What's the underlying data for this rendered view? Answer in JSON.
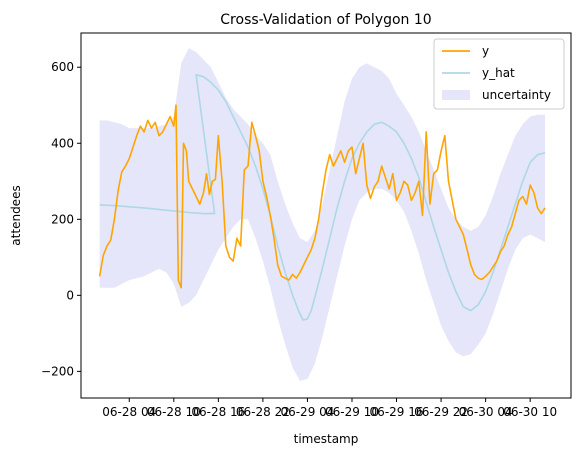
{
  "chart_data": {
    "type": "line",
    "title": "Cross-Validation of Polygon 10",
    "xlabel": "timestamp",
    "ylabel": "attendees",
    "x_unit": "hours since 06-28 00:00",
    "xlim": [
      -2.5,
      63.5
    ],
    "ylim": [
      -270,
      690
    ],
    "x_ticks": [
      {
        "x": 4,
        "label": "06-28 04"
      },
      {
        "x": 10,
        "label": "06-28 10"
      },
      {
        "x": 16,
        "label": "06-28 16"
      },
      {
        "x": 22,
        "label": "06-28 22"
      },
      {
        "x": 28,
        "label": "06-29 04"
      },
      {
        "x": 34,
        "label": "06-29 10"
      },
      {
        "x": 40,
        "label": "06-29 16"
      },
      {
        "x": 46,
        "label": "06-29 22"
      },
      {
        "x": 52,
        "label": "06-30 04"
      },
      {
        "x": 58,
        "label": "06-30 10"
      }
    ],
    "y_ticks": [
      {
        "y": -200,
        "label": "−200"
      },
      {
        "y": 0,
        "label": "0"
      },
      {
        "y": 200,
        "label": "200"
      },
      {
        "y": 400,
        "label": "400"
      },
      {
        "y": 600,
        "label": "600"
      }
    ],
    "legend_position": "top-right",
    "grid": false,
    "series": [
      {
        "name": "y",
        "color": "#ffa500",
        "points": [
          [
            0,
            50
          ],
          [
            0.5,
            105
          ],
          [
            1,
            130
          ],
          [
            1.5,
            145
          ],
          [
            2,
            200
          ],
          [
            2.5,
            275
          ],
          [
            3,
            325
          ],
          [
            3.5,
            340
          ],
          [
            4,
            360
          ],
          [
            4.5,
            390
          ],
          [
            5,
            420
          ],
          [
            5.5,
            445
          ],
          [
            6,
            430
          ],
          [
            6.5,
            460
          ],
          [
            7,
            440
          ],
          [
            7.5,
            455
          ],
          [
            8,
            420
          ],
          [
            8.5,
            430
          ],
          [
            9,
            450
          ],
          [
            9.5,
            470
          ],
          [
            10,
            445
          ],
          [
            10.3,
            500
          ],
          [
            10.6,
            40
          ],
          [
            11,
            20
          ],
          [
            11.3,
            400
          ],
          [
            11.7,
            380
          ],
          [
            12,
            300
          ],
          [
            12.5,
            280
          ],
          [
            13,
            260
          ],
          [
            13.5,
            240
          ],
          [
            14,
            270
          ],
          [
            14.4,
            320
          ],
          [
            14.8,
            265
          ],
          [
            15.2,
            300
          ],
          [
            15.6,
            305
          ],
          [
            16,
            420
          ],
          [
            16.5,
            300
          ],
          [
            17,
            130
          ],
          [
            17.5,
            100
          ],
          [
            18,
            90
          ],
          [
            18.5,
            150
          ],
          [
            19,
            130
          ],
          [
            19.5,
            330
          ],
          [
            20,
            340
          ],
          [
            20.5,
            455
          ],
          [
            21,
            420
          ],
          [
            21.5,
            380
          ],
          [
            22,
            300
          ],
          [
            22.5,
            260
          ],
          [
            23,
            210
          ],
          [
            23.5,
            150
          ],
          [
            24,
            80
          ],
          [
            24.5,
            50
          ],
          [
            25,
            45
          ],
          [
            25.5,
            40
          ],
          [
            26,
            55
          ],
          [
            26.5,
            45
          ],
          [
            27,
            60
          ],
          [
            27.5,
            80
          ],
          [
            28,
            100
          ],
          [
            28.5,
            120
          ],
          [
            29,
            150
          ],
          [
            29.5,
            200
          ],
          [
            30,
            270
          ],
          [
            30.5,
            330
          ],
          [
            31,
            370
          ],
          [
            31.5,
            340
          ],
          [
            32,
            360
          ],
          [
            32.5,
            380
          ],
          [
            33,
            350
          ],
          [
            33.5,
            380
          ],
          [
            34,
            390
          ],
          [
            34.5,
            320
          ],
          [
            35,
            360
          ],
          [
            35.5,
            400
          ],
          [
            36,
            290
          ],
          [
            36.5,
            255
          ],
          [
            37,
            285
          ],
          [
            37.5,
            300
          ],
          [
            38,
            340
          ],
          [
            38.5,
            310
          ],
          [
            39,
            280
          ],
          [
            39.5,
            320
          ],
          [
            40,
            250
          ],
          [
            40.5,
            270
          ],
          [
            41,
            300
          ],
          [
            41.5,
            290
          ],
          [
            42,
            250
          ],
          [
            42.5,
            270
          ],
          [
            43,
            300
          ],
          [
            43.5,
            210
          ],
          [
            44,
            430
          ],
          [
            44.5,
            240
          ],
          [
            45,
            320
          ],
          [
            45.5,
            330
          ],
          [
            46,
            380
          ],
          [
            46.5,
            420
          ],
          [
            47,
            300
          ],
          [
            47.5,
            250
          ],
          [
            48,
            200
          ],
          [
            48.5,
            180
          ],
          [
            49,
            160
          ],
          [
            49.5,
            120
          ],
          [
            50,
            80
          ],
          [
            50.5,
            55
          ],
          [
            51,
            45
          ],
          [
            51.5,
            42
          ],
          [
            52,
            50
          ],
          [
            52.5,
            60
          ],
          [
            53,
            75
          ],
          [
            53.5,
            90
          ],
          [
            54,
            115
          ],
          [
            54.5,
            130
          ],
          [
            55,
            160
          ],
          [
            55.5,
            180
          ],
          [
            56,
            215
          ],
          [
            56.5,
            250
          ],
          [
            57,
            260
          ],
          [
            57.5,
            240
          ],
          [
            58,
            290
          ],
          [
            58.5,
            270
          ],
          [
            59,
            230
          ],
          [
            59.5,
            215
          ],
          [
            60,
            230
          ]
        ]
      },
      {
        "name": "y_hat",
        "color": "#add8e6",
        "points": [
          [
            0,
            238
          ],
          [
            2,
            236
          ],
          [
            4,
            233
          ],
          [
            6,
            230
          ],
          [
            8,
            226
          ],
          [
            10,
            222
          ],
          [
            12,
            218
          ],
          [
            14,
            215
          ],
          [
            15.5,
            215
          ],
          [
            13,
            580
          ],
          [
            14,
            575
          ],
          [
            15,
            560
          ],
          [
            16,
            540
          ],
          [
            17,
            510
          ],
          [
            18,
            470
          ],
          [
            19,
            430
          ],
          [
            20,
            390
          ],
          [
            21,
            340
          ],
          [
            22,
            280
          ],
          [
            23,
            210
          ],
          [
            24,
            130
          ],
          [
            25,
            60
          ],
          [
            26,
            0
          ],
          [
            26.8,
            -40
          ],
          [
            27.4,
            -65
          ],
          [
            28,
            -62
          ],
          [
            28.5,
            -40
          ],
          [
            29,
            -5
          ],
          [
            30,
            70
          ],
          [
            31,
            150
          ],
          [
            32,
            230
          ],
          [
            33,
            300
          ],
          [
            34,
            360
          ],
          [
            35,
            400
          ],
          [
            36,
            430
          ],
          [
            37,
            450
          ],
          [
            38,
            455
          ],
          [
            39,
            445
          ],
          [
            40,
            430
          ],
          [
            41,
            400
          ],
          [
            42,
            360
          ],
          [
            43,
            310
          ],
          [
            44,
            245
          ],
          [
            45,
            180
          ],
          [
            46,
            120
          ],
          [
            47,
            60
          ],
          [
            48,
            10
          ],
          [
            49,
            -30
          ],
          [
            50,
            -40
          ],
          [
            51,
            -25
          ],
          [
            52,
            10
          ],
          [
            53,
            60
          ],
          [
            54,
            120
          ],
          [
            55,
            180
          ],
          [
            56,
            240
          ],
          [
            57,
            300
          ],
          [
            58,
            350
          ],
          [
            59,
            370
          ],
          [
            60,
            375
          ]
        ]
      }
    ],
    "uncertainty": {
      "name": "uncertainty",
      "color": "#e6e6fa",
      "points": [
        [
          0,
          20,
          460
        ],
        [
          1,
          20,
          460
        ],
        [
          2,
          20,
          455
        ],
        [
          3,
          30,
          450
        ],
        [
          4,
          40,
          440
        ],
        [
          5,
          45,
          440
        ],
        [
          6,
          50,
          440
        ],
        [
          7,
          60,
          440
        ],
        [
          8,
          70,
          445
        ],
        [
          9,
          60,
          450
        ],
        [
          10,
          30,
          470
        ],
        [
          11,
          -30,
          610
        ],
        [
          12,
          -20,
          650
        ],
        [
          13,
          0,
          640
        ],
        [
          14,
          40,
          620
        ],
        [
          15,
          80,
          600
        ],
        [
          16,
          120,
          560
        ],
        [
          17,
          150,
          520
        ],
        [
          18,
          180,
          490
        ],
        [
          19,
          200,
          470
        ],
        [
          20,
          200,
          450
        ],
        [
          21,
          150,
          420
        ],
        [
          22,
          90,
          400
        ],
        [
          23,
          20,
          370
        ],
        [
          24,
          -60,
          300
        ],
        [
          25,
          -130,
          240
        ],
        [
          26,
          -190,
          190
        ],
        [
          27,
          -225,
          150
        ],
        [
          28,
          -220,
          140
        ],
        [
          29,
          -180,
          170
        ],
        [
          30,
          -110,
          240
        ],
        [
          31,
          -30,
          330
        ],
        [
          32,
          50,
          420
        ],
        [
          33,
          130,
          510
        ],
        [
          34,
          200,
          570
        ],
        [
          35,
          250,
          600
        ],
        [
          36,
          270,
          610
        ],
        [
          37,
          280,
          600
        ],
        [
          38,
          280,
          590
        ],
        [
          39,
          270,
          570
        ],
        [
          40,
          250,
          530
        ],
        [
          41,
          220,
          500
        ],
        [
          42,
          170,
          470
        ],
        [
          43,
          110,
          430
        ],
        [
          44,
          40,
          380
        ],
        [
          45,
          -20,
          330
        ],
        [
          46,
          -80,
          280
        ],
        [
          47,
          -120,
          230
        ],
        [
          48,
          -150,
          200
        ],
        [
          49,
          -160,
          180
        ],
        [
          50,
          -155,
          170
        ],
        [
          51,
          -130,
          180
        ],
        [
          52,
          -100,
          210
        ],
        [
          53,
          -50,
          260
        ],
        [
          54,
          10,
          320
        ],
        [
          55,
          70,
          370
        ],
        [
          56,
          120,
          420
        ],
        [
          57,
          150,
          450
        ],
        [
          58,
          160,
          470
        ],
        [
          59,
          150,
          475
        ],
        [
          60,
          140,
          475
        ]
      ]
    }
  }
}
